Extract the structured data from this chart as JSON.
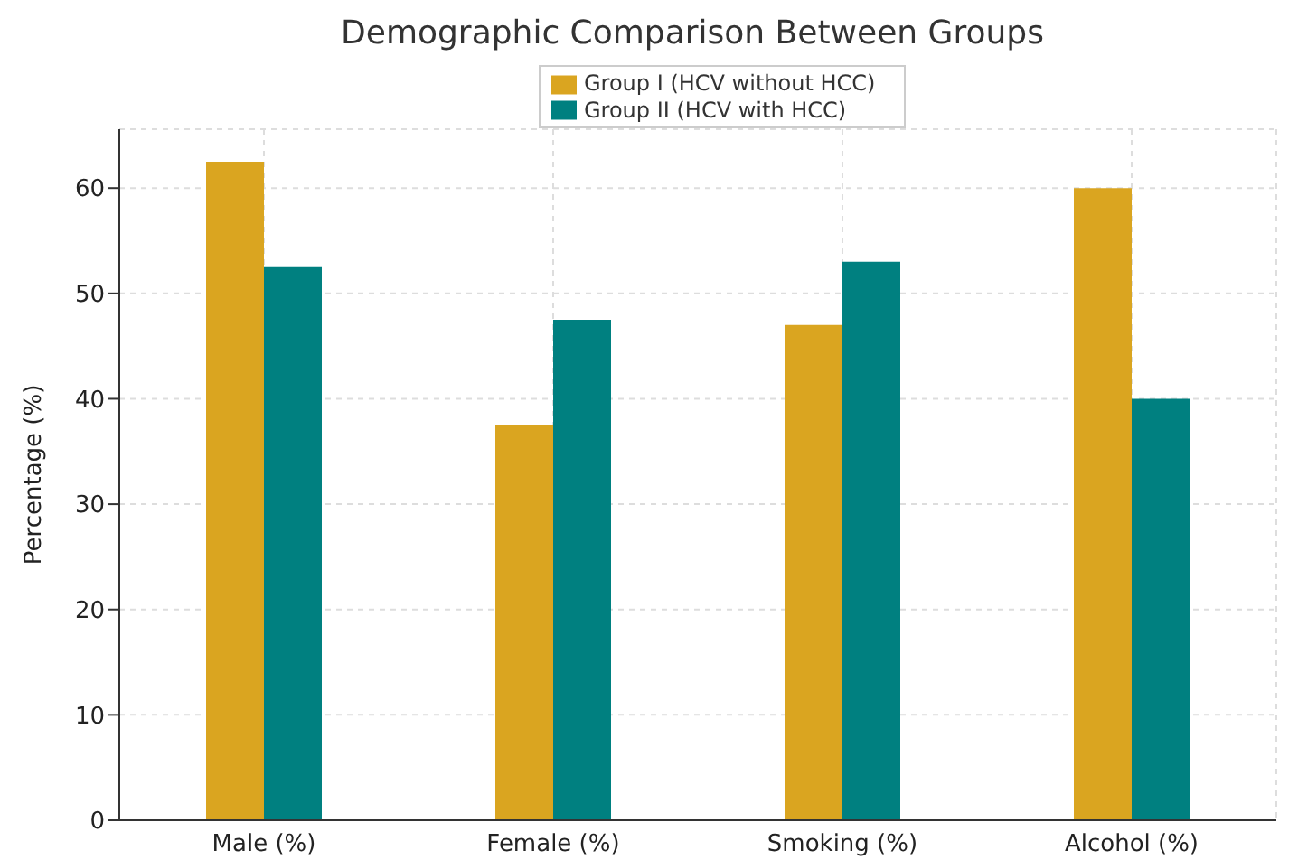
{
  "chart_data": {
    "type": "bar",
    "title": "Demographic Comparison Between Groups",
    "ylabel": "Percentage (%)",
    "categories": [
      "Male (%)",
      "Female (%)",
      "Smoking (%)",
      "Alcohol (%)"
    ],
    "series": [
      {
        "name": "Group I (HCV without HCC)",
        "color": "#daa520",
        "values": [
          62.5,
          37.5,
          47,
          60
        ]
      },
      {
        "name": "Group II (HCV with HCC)",
        "color": "#008080",
        "values": [
          52.5,
          47.5,
          53,
          40
        ]
      }
    ],
    "ylim": [
      0,
      65.6
    ],
    "yticks": [
      0,
      10,
      20,
      30,
      40,
      50,
      60
    ],
    "grid": true,
    "legend": "top"
  }
}
